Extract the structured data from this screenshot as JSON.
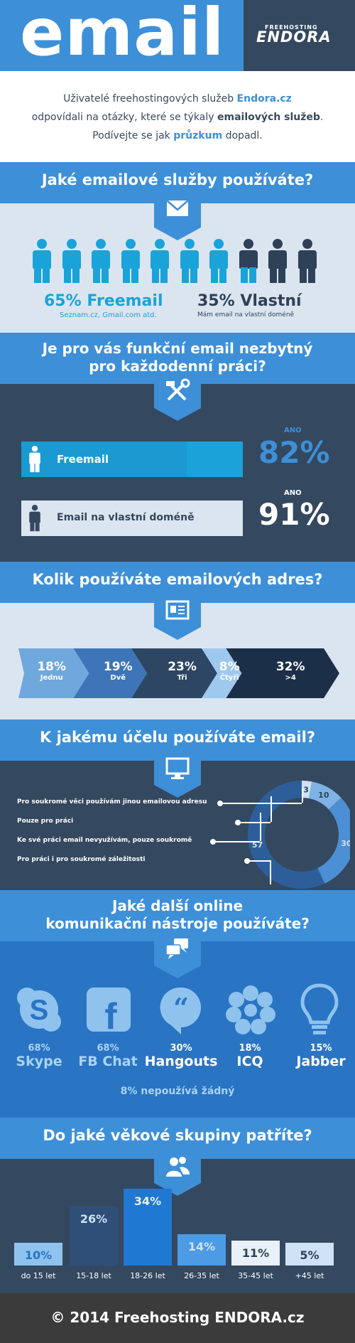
{
  "header": {
    "title": "email",
    "brand_top": "FREEHOSTING",
    "brand": "ENDORA"
  },
  "intro": {
    "l1a": "Uživatelé freehostingových služeb ",
    "l1b": "Endora.cz",
    "l2a": "odpovídali na otázky, které se týkaly ",
    "l2b": "emailových služeb",
    "l2c": ".",
    "l3a": "Podívejte se jak ",
    "l3b": "průzkum",
    "l3c": " dopadl."
  },
  "q1": {
    "title": "Jaké emailové služby používáte?",
    "freemail_pct": 65,
    "freemail_label": "65% Freemail",
    "freemail_sub": "Seznam.cz, Gmail.com atd.",
    "own_pct": 35,
    "own_label": "35% Vlastní",
    "own_sub": "Mám email na vlastní doméně"
  },
  "q2": {
    "title_l1": "Je pro vás funkční email nezbytný",
    "title_l2": "pro každodenní práci?",
    "row1": {
      "label": "Freemail",
      "ano": "ANO",
      "pct": "82%",
      "value": 82
    },
    "row2": {
      "label": "Email na vlastní doméně",
      "ano": "ANO",
      "pct": "91%",
      "value": 91
    }
  },
  "q3": {
    "title": "Kolik používáte emailových adres?",
    "items": [
      {
        "pct": "18%",
        "label": "Jednu",
        "value": 18
      },
      {
        "pct": "19%",
        "label": "Dvě",
        "value": 19
      },
      {
        "pct": "23%",
        "label": "Tři",
        "value": 23
      },
      {
        "pct": "8%",
        "label": "Čtyři",
        "value": 8
      },
      {
        "pct": "32%",
        "label": ">4",
        "value": 32
      }
    ]
  },
  "q4": {
    "title": "K jakému účelu používáte email?",
    "legend": [
      "Pro soukromé věci používám jinou emailovou adresu",
      "Pouze pro práci",
      "Ke své práci email nevyužívám, pouze soukromě",
      "Pro práci i pro soukromé záležitosti"
    ],
    "values": [
      3,
      10,
      30,
      57
    ],
    "labels": [
      "3",
      "10",
      "30",
      "57"
    ]
  },
  "q5": {
    "title_l1": "Jaké další online",
    "title_l2": "komunikační nástroje používáte?",
    "tools": [
      {
        "pct": "68%",
        "name": "Skype",
        "icon": "skype-icon"
      },
      {
        "pct": "68%",
        "name": "FB Chat",
        "icon": "facebook-icon"
      },
      {
        "pct": "30%",
        "name": "Hangouts",
        "icon": "hangouts-icon"
      },
      {
        "pct": "18%",
        "name": "ICQ",
        "icon": "icq-icon"
      },
      {
        "pct": "15%",
        "name": "Jabber",
        "icon": "jabber-icon"
      }
    ],
    "none": "8% nepoužívá žádný"
  },
  "q6": {
    "title": "Do jaké věkové skupiny patříte?",
    "groups": [
      {
        "pct": "10%",
        "label": "do 15 let",
        "value": 10
      },
      {
        "pct": "26%",
        "label": "15-18 let",
        "value": 26
      },
      {
        "pct": "34%",
        "label": "18-26 let",
        "value": 34
      },
      {
        "pct": "14%",
        "label": "26-35 let",
        "value": 14
      },
      {
        "pct": "11%",
        "label": "35-45 let",
        "value": 11
      },
      {
        "pct": "5%",
        "label": "+45 let",
        "value": 5
      }
    ]
  },
  "footer": {
    "text": "© 2014 Freehosting ENDORA.cz"
  },
  "colors": {
    "blue": "#3d8fd8",
    "dark": "#34485f",
    "light": "#dbe5ef",
    "cyan": "#1aa3d9",
    "navy": "#2f4158",
    "mid": "#2a74c4"
  }
}
